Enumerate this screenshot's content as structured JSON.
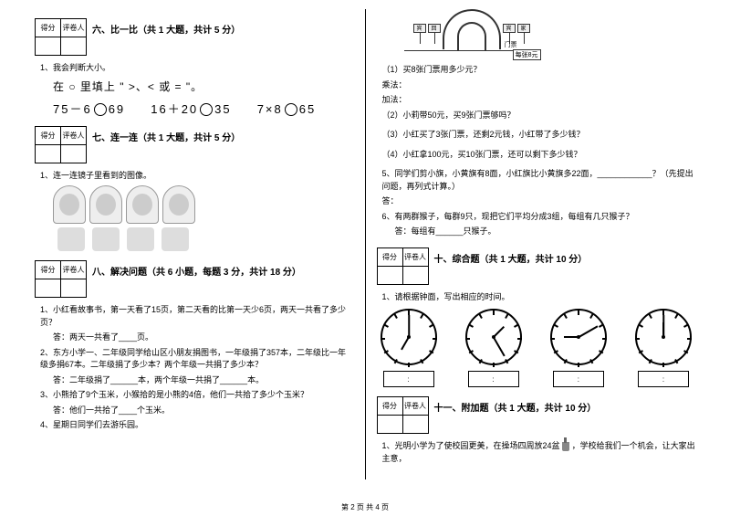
{
  "scorebox": {
    "score_label": "得分",
    "reviewer_label": "评卷人"
  },
  "sections": {
    "six": {
      "title": "六、比一比（共 1 大题，共计 5 分）"
    },
    "seven": {
      "title": "七、连一连（共 1 大题，共计 5 分）"
    },
    "eight": {
      "title": "八、解决问题（共 6 小题，每题 3 分，共计 18 分）"
    },
    "ten": {
      "title": "十、综合题（共 1 大题，共计 10 分）"
    },
    "eleven": {
      "title": "十一、附加题（共 1 大题，共计 10 分）"
    }
  },
  "left": {
    "q6_1": "1、我会判断大小。",
    "q6_instruct": "在 ○ 里填上 \" >、< 或  = \"。",
    "q6_math_a": "75－6",
    "q6_math_b": "69",
    "q6_math_c": "16＋20",
    "q6_math_d": "35",
    "q6_math_e": "7×8",
    "q6_math_f": "65",
    "q7_1": "1、连一连镜子里看到的图像。",
    "q8_1": "1、小红看故事书，第一天看了15页，第二天看的比第一天少6页，两天一共看了多少页？",
    "q8_1a": "答：两天一共看了____页。",
    "q8_2": "2、东方小学一、二年级同学给山区小朋友捐图书，一年级捐了357本，二年级比一年级多捐67本。二年级捐了多少本？两个年级一共捐了多少本？",
    "q8_2a": "答：二年级捐了______本，两个年级一共捐了______本。",
    "q8_3": "3、小熊拾了9个玉米，小猴拾的是小熊的4倍，他们一共拾了多少个玉米？",
    "q8_3a": "答：他们一共拾了____个玉米。",
    "q8_4": "4、星期日同学们去游乐园。"
  },
  "right": {
    "door_label": "门票",
    "ticket_text": "每张8元",
    "sign_left1": "宾",
    "sign_left2": "回",
    "sign_right1": "宾",
    "sign_right2": "家",
    "r1": "（1）买8张门票用多少元？",
    "r1a": "乘法：",
    "r1b": "加法：",
    "r2": "（2）小莉带50元，买9张门票够吗？",
    "r3": "（3）小红买了3张门票，还剩2元钱，小红带了多少钱？",
    "r4": "（4）小红拿100元，买10张门票，还可以剩下多少钱？",
    "q5": "5、同学们剪小旗，小黄旗有8面，小红旗比小黄旗多22面，____________？（先提出问题，再列式计算。）",
    "q5a": "答：",
    "q6": "6、有两群猴子，每群9只，现把它们平均分成3组，每组有几只猴子？",
    "q6a": "答：每组有______只猴子。",
    "q10_1": "1、请根据钟面，写出相应的时间。",
    "time_colon": ":",
    "q11_1": "1、光明小学为了使校园更美，在操场四周放24盆",
    "q11_1b": "，学校给我们一个机会，让大家出主意，"
  },
  "clocks": [
    {
      "hour_deg": 120,
      "min_deg": -90
    },
    {
      "hour_deg": -45,
      "min_deg": 60
    },
    {
      "hour_deg": 180,
      "min_deg": -30
    },
    {
      "hour_deg": -90,
      "min_deg": -90
    }
  ],
  "colors": {
    "text": "#000000",
    "bg": "#ffffff",
    "gray": "#cccccc"
  },
  "footer": "第 2 页 共 4 页"
}
